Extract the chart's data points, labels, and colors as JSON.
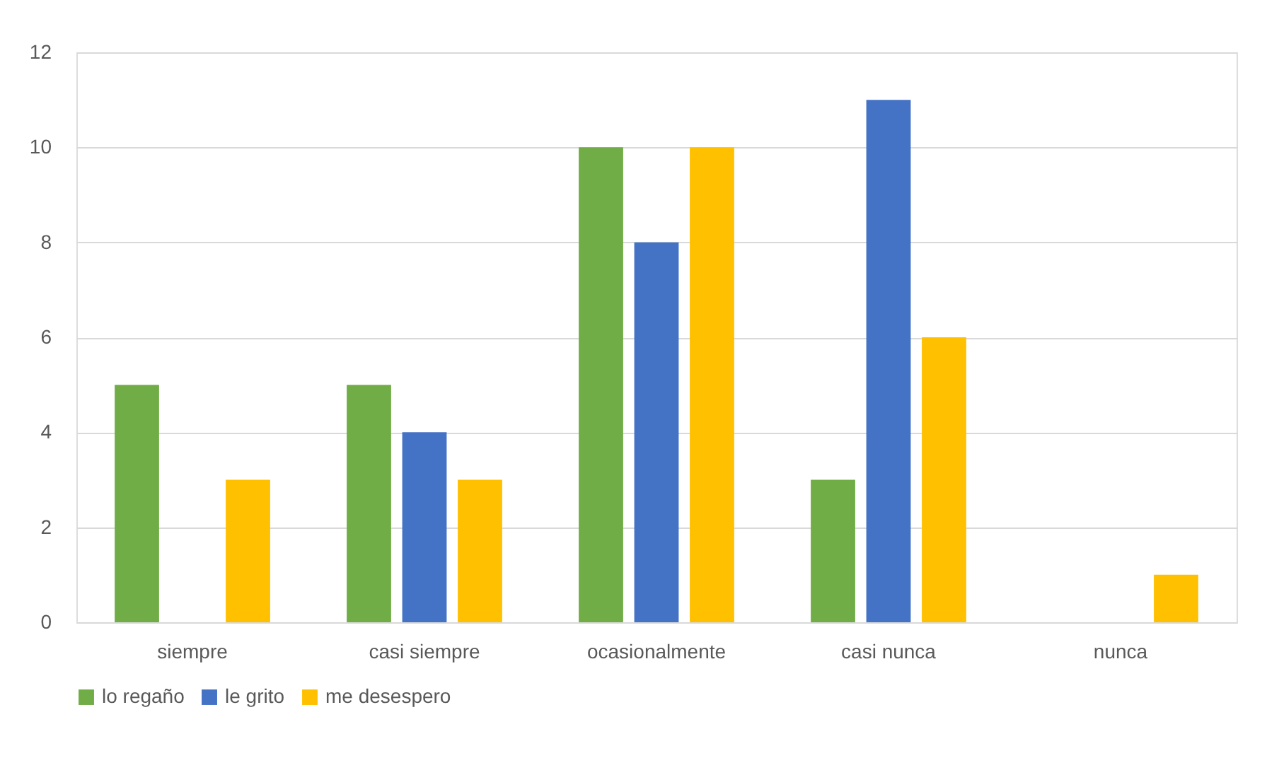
{
  "chart_data": {
    "type": "bar",
    "categories": [
      "siempre",
      "casi siempre",
      "ocasionalmente",
      "casi nunca",
      "nunca"
    ],
    "series": [
      {
        "name": "lo regaño",
        "color": "#70ad47",
        "values": [
          5,
          5,
          10,
          3,
          0
        ]
      },
      {
        "name": "le grito",
        "color": "#4472c4",
        "values": [
          0,
          4,
          8,
          11,
          0
        ]
      },
      {
        "name": "me desespero",
        "color": "#ffc000",
        "values": [
          3,
          3,
          10,
          6,
          1
        ]
      }
    ],
    "ylim": [
      0,
      12
    ],
    "yticks": [
      0,
      2,
      4,
      6,
      8,
      10,
      12
    ],
    "grid": "y",
    "legend": "bottom"
  }
}
